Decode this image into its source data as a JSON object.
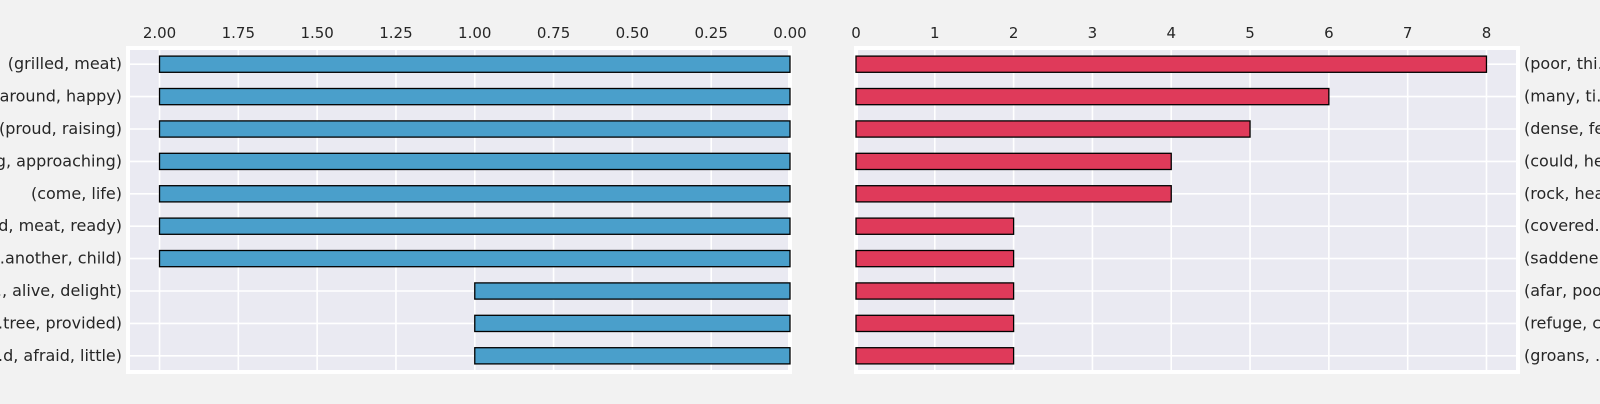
{
  "chart_data": [
    {
      "type": "bar",
      "orientation": "horizontal",
      "x_direction": "reversed",
      "tick_position": "top",
      "label_position": "left",
      "title": "",
      "xlabel": "",
      "ylabel": "",
      "xlim": [
        2.1,
        0
      ],
      "xticks": [
        "2.00",
        "1.75",
        "1.50",
        "1.25",
        "1.00",
        "0.75",
        "0.50",
        "0.25",
        "0.00"
      ],
      "grid": true,
      "bar_color": "#4a9fcb",
      "categories": [
        "(grilled, meat)",
        "(around, happy)",
        "(proud, raising)",
        "(…g, approaching)",
        "(come, life)",
        "(…d, meat, ready)",
        "(…another, child)",
        "(…, alive, delight)",
        "(…tree, provided)",
        "(…d, afraid, little)"
      ],
      "values": [
        2,
        2,
        2,
        2,
        2,
        2,
        2,
        1,
        1,
        1
      ]
    },
    {
      "type": "bar",
      "orientation": "horizontal",
      "x_direction": "normal",
      "tick_position": "top",
      "label_position": "right",
      "title": "",
      "xlabel": "",
      "ylabel": "",
      "xlim": [
        0,
        8.4
      ],
      "xticks": [
        "0",
        "1",
        "2",
        "3",
        "4",
        "5",
        "6",
        "7",
        "8"
      ],
      "grid": true,
      "bar_color": "#df3a5a",
      "categories": [
        "(poor, thi…",
        "(many, ti…",
        "(dense, fe…",
        "(could, he…",
        "(rock, hea…",
        "(covered…",
        "(saddene…",
        "(afar, poo…",
        "(refuge, c…",
        "(groans, …"
      ],
      "values": [
        8,
        6,
        5,
        4,
        4,
        2,
        2,
        2,
        2,
        2
      ]
    }
  ],
  "colors": {
    "page_background": "#f2f2f2",
    "plot_background": "#eaeaf2",
    "grid": "#ffffff",
    "bar_edge": "#000000"
  }
}
